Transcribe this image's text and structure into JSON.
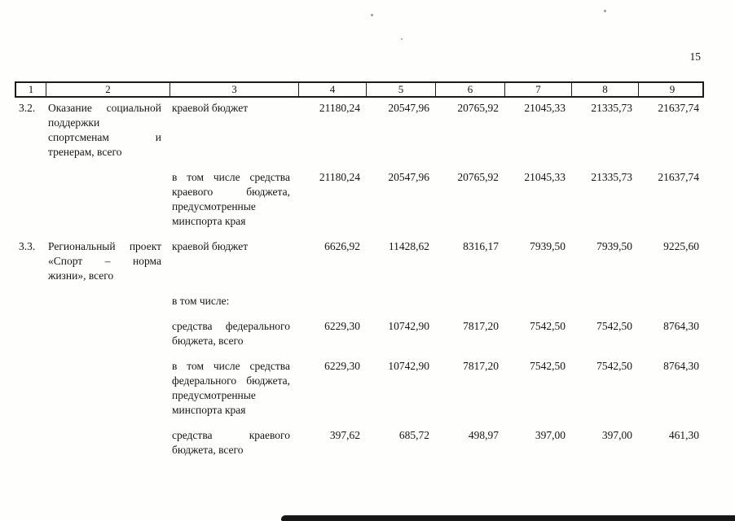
{
  "page": {
    "number": "15"
  },
  "table": {
    "header": [
      "1",
      "2",
      "3",
      "4",
      "5",
      "6",
      "7",
      "8",
      "9"
    ],
    "rows": [
      {
        "num": "3.2.",
        "name": "Оказание социальной поддержки спортсменам и тренерам, всего",
        "source": "краевой бюджет",
        "values": [
          "21180,24",
          "20547,96",
          "20765,92",
          "21045,33",
          "21335,73",
          "21637,74"
        ]
      },
      {
        "num": "",
        "name": "",
        "source": "в том числе средства краевого бюджета, предусмотренные минспорта края",
        "values": [
          "21180,24",
          "20547,96",
          "20765,92",
          "21045,33",
          "21335,73",
          "21637,74"
        ]
      },
      {
        "num": "3.3.",
        "name": "Региональный проект «Спорт – норма жизни», всего",
        "source": "краевой бюджет",
        "values": [
          "6626,92",
          "11428,62",
          "8316,17",
          "7939,50",
          "7939,50",
          "9225,60"
        ]
      },
      {
        "num": "",
        "name": "",
        "source": "в том числе:",
        "values": [
          "",
          "",
          "",
          "",
          "",
          ""
        ]
      },
      {
        "num": "",
        "name": "",
        "source": "средства федерального бюджета, всего",
        "values": [
          "6229,30",
          "10742,90",
          "7817,20",
          "7542,50",
          "7542,50",
          "8764,30"
        ]
      },
      {
        "num": "",
        "name": "",
        "source": "в том числе средства федерального бюджета, предусмотренные минспорта края",
        "values": [
          "6229,30",
          "10742,90",
          "7817,20",
          "7542,50",
          "7542,50",
          "8764,30"
        ]
      },
      {
        "num": "",
        "name": "",
        "source": "средства краевого бюджета, всего",
        "values": [
          "397,62",
          "685,72",
          "498,97",
          "397,00",
          "397,00",
          "461,30"
        ]
      }
    ]
  }
}
